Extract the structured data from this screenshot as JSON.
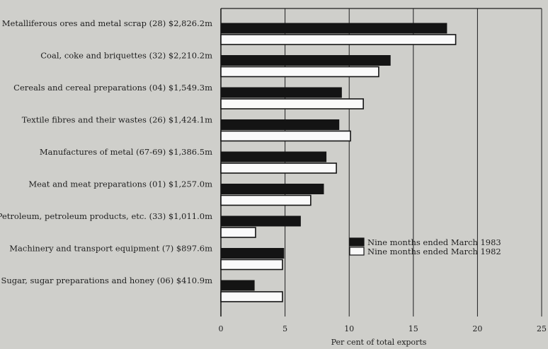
{
  "chart_data": {
    "type": "bar",
    "orientation": "horizontal",
    "title": "",
    "xlabel": "Per cent of total exports",
    "ylabel": "",
    "xlim": [
      0,
      25
    ],
    "xticks": [
      "0",
      "5",
      "10",
      "15",
      "20",
      "25"
    ],
    "grid": true,
    "legend_position": "lower-right",
    "categories": [
      "Metalliferous ores and metal scrap (28) $2,826.2m",
      "Coal, coke and briquettes (32) $2,210.2m",
      "Cereals and cereal preparations (04) $1,549.3m",
      "Textile fibres and their wastes (26) $1,424.1m",
      "Manufactures of metal (67-69) $1,386.5m",
      "Meat and meat preparations (01) $1,257.0m",
      "Petroleum, petroleum products, etc. (33) $1,011.0m",
      "Machinery and transport equipment (7) $897.6m",
      "Sugar, sugar preparations and honey (06) $410.9m"
    ],
    "series": [
      {
        "name": "Nine months ended March 1983",
        "color": "#141414",
        "values": [
          17.6,
          13.2,
          9.4,
          9.2,
          8.2,
          8.0,
          6.2,
          4.9,
          2.6
        ]
      },
      {
        "name": "Nine months ended March 1982",
        "color": "#fafafa",
        "values": [
          18.3,
          12.3,
          11.1,
          10.1,
          9.0,
          7.0,
          2.7,
          4.8,
          4.8
        ]
      }
    ]
  }
}
